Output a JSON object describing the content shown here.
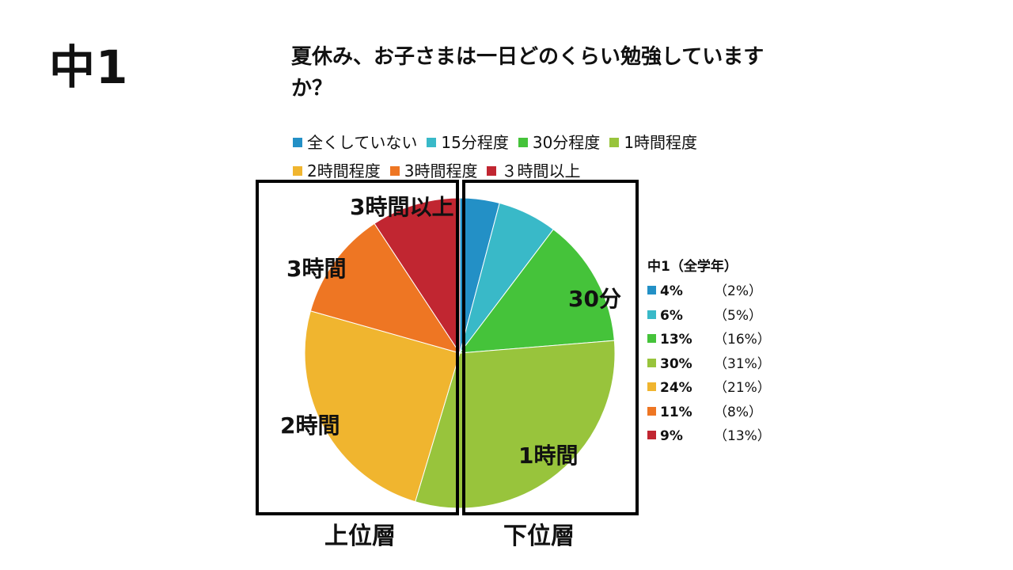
{
  "page": {
    "grade": "中1",
    "title_line1": "夏休み、お子さまは一日どのくらい勉強しています",
    "title_line2": "か？"
  },
  "chart_data": {
    "type": "pie",
    "title": "夏休み、お子さまは一日どのくらい勉強していますか？",
    "start_angle_deg": 0,
    "direction": "clockwise",
    "categories": [
      "全くしていない",
      "15分程度",
      "30分程度",
      "1時間程度",
      "2時間程度",
      "3時間程度",
      "３時間以上"
    ],
    "values": [
      4,
      6,
      13,
      30,
      24,
      11,
      9
    ],
    "value_labels": [
      "4%",
      "6%",
      "13%",
      "30%",
      "24%",
      "11%",
      "9%"
    ],
    "comparison_label": "中1（全学年）",
    "comparison_labels": [
      "（2%）",
      "（5%）",
      "（16%）",
      "（31%）",
      "（21%）",
      "（8%）",
      "（13%）"
    ],
    "colors": [
      "#2390c6",
      "#39b9c8",
      "#45c33a",
      "#98c43c",
      "#f0b52f",
      "#ee7623",
      "#c12631"
    ],
    "legend_position": "top",
    "slice_labels": {
      "s30": "30分",
      "s1h": "1時間",
      "s2h": "2時間",
      "s3h": "3時間",
      "s3plus": "3時間以上"
    },
    "groups": {
      "upper": "上位層",
      "lower": "下位層"
    }
  }
}
